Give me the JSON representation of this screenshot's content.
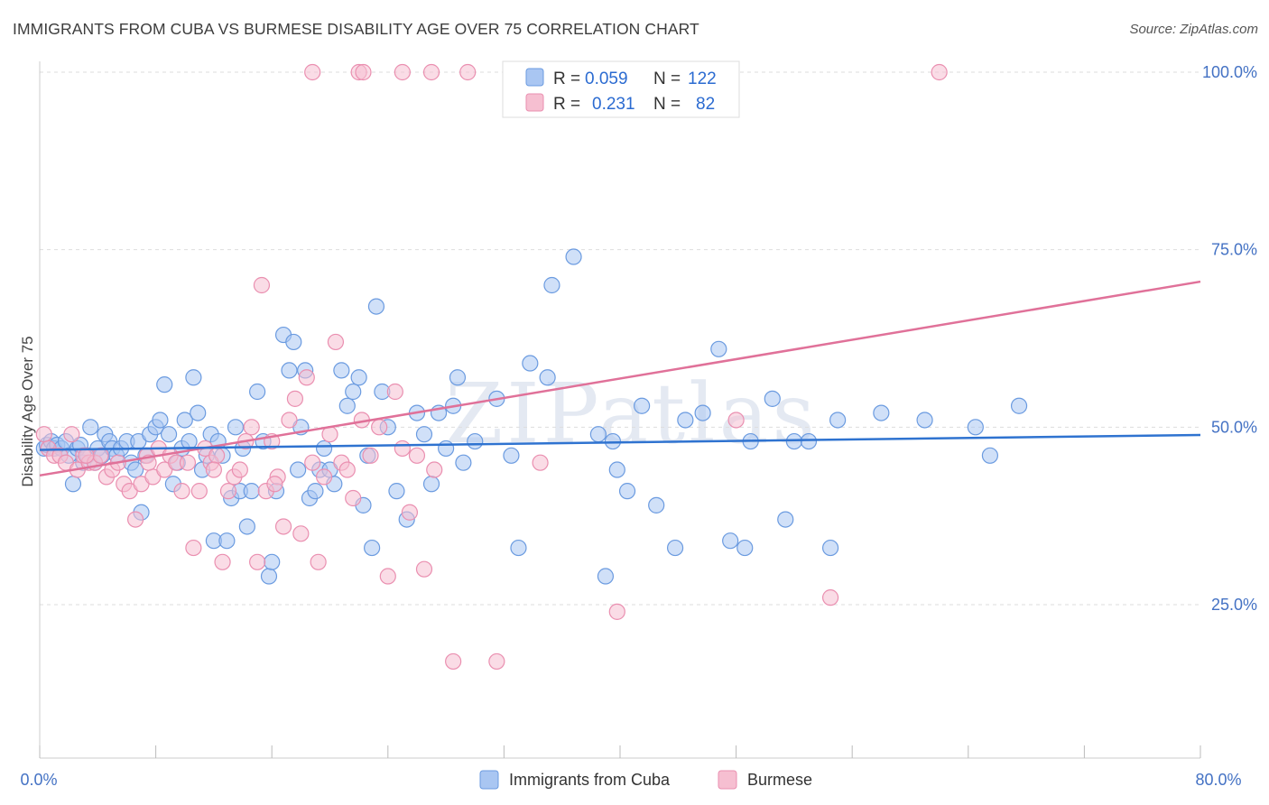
{
  "title": "IMMIGRANTS FROM CUBA VS BURMESE DISABILITY AGE OVER 75 CORRELATION CHART",
  "source": "Source: ZipAtlas.com",
  "watermark": "ZIPatlas",
  "colors": {
    "cuba_fill": "#a9c6f2",
    "cuba_stroke": "#6b9be0",
    "cuba_line": "#2f73d0",
    "burmese_fill": "#f6bfd1",
    "burmese_stroke": "#ea8fb0",
    "burmese_line": "#e07199",
    "grid": "#dddddd",
    "tick_label": "#4472c4"
  },
  "legend": {
    "r_label": "R =",
    "n_label": "N =",
    "rows": [
      {
        "series": "Immigrants from Cuba",
        "r": "0.059",
        "n": "122"
      },
      {
        "series": "Burmese",
        "r": "0.231",
        "n": "82"
      }
    ]
  },
  "chart_data": {
    "type": "scatter",
    "title": "IMMIGRANTS FROM CUBA VS BURMESE DISABILITY AGE OVER 75 CORRELATION CHART",
    "xlabel": "",
    "ylabel": "Disability Age Over 75",
    "xlim": [
      0,
      80
    ],
    "ylim": [
      0,
      105
    ],
    "x_tick_labels": [
      "0.0%",
      "80.0%"
    ],
    "y_ticks": [
      25,
      50,
      75,
      100
    ],
    "y_tick_labels": [
      "25.0%",
      "50.0%",
      "75.0%",
      "100.0%"
    ],
    "grid": true,
    "legend_position": "top-center",
    "series": [
      {
        "name": "Immigrants from Cuba",
        "trend": {
          "x": [
            0,
            80
          ],
          "y": [
            46.8,
            48.9
          ]
        },
        "points": [
          [
            0.3,
            47
          ],
          [
            0.5,
            47.5
          ],
          [
            0.8,
            48
          ],
          [
            1.0,
            47
          ],
          [
            1.2,
            47.5
          ],
          [
            1.5,
            47
          ],
          [
            1.8,
            48
          ],
          [
            2.0,
            46
          ],
          [
            2.3,
            42
          ],
          [
            2.6,
            47
          ],
          [
            2.8,
            47.5
          ],
          [
            3.0,
            45
          ],
          [
            3.3,
            46
          ],
          [
            3.5,
            50
          ],
          [
            3.8,
            45
          ],
          [
            4.0,
            47
          ],
          [
            4.3,
            46
          ],
          [
            4.5,
            49
          ],
          [
            4.8,
            48
          ],
          [
            5.0,
            47
          ],
          [
            5.3,
            46
          ],
          [
            5.6,
            47
          ],
          [
            6.0,
            48
          ],
          [
            6.3,
            45
          ],
          [
            6.6,
            44
          ],
          [
            6.8,
            48
          ],
          [
            7.0,
            38
          ],
          [
            7.3,
            46
          ],
          [
            7.6,
            49
          ],
          [
            8.0,
            50
          ],
          [
            8.3,
            51
          ],
          [
            8.6,
            56
          ],
          [
            8.9,
            49
          ],
          [
            9.2,
            42
          ],
          [
            9.5,
            45
          ],
          [
            9.8,
            47
          ],
          [
            10.0,
            51
          ],
          [
            10.3,
            48
          ],
          [
            10.6,
            57
          ],
          [
            10.9,
            52
          ],
          [
            11.2,
            44
          ],
          [
            11.5,
            46
          ],
          [
            11.8,
            49
          ],
          [
            12.0,
            34
          ],
          [
            12.3,
            48
          ],
          [
            12.6,
            46
          ],
          [
            12.9,
            34
          ],
          [
            13.2,
            40
          ],
          [
            13.5,
            50
          ],
          [
            13.8,
            41
          ],
          [
            14.0,
            47
          ],
          [
            14.3,
            36
          ],
          [
            14.6,
            41
          ],
          [
            15.0,
            55
          ],
          [
            15.4,
            48
          ],
          [
            15.8,
            29
          ],
          [
            16.0,
            31
          ],
          [
            16.3,
            41
          ],
          [
            16.8,
            63
          ],
          [
            17.2,
            58
          ],
          [
            17.5,
            62
          ],
          [
            17.8,
            44
          ],
          [
            18.0,
            50
          ],
          [
            18.3,
            58
          ],
          [
            18.6,
            40
          ],
          [
            19.0,
            41
          ],
          [
            19.3,
            44
          ],
          [
            19.6,
            47
          ],
          [
            20.0,
            44
          ],
          [
            20.3,
            42
          ],
          [
            20.8,
            58
          ],
          [
            21.2,
            53
          ],
          [
            21.6,
            55
          ],
          [
            22.0,
            57
          ],
          [
            22.3,
            39
          ],
          [
            22.6,
            46
          ],
          [
            22.9,
            33
          ],
          [
            23.2,
            67
          ],
          [
            23.6,
            55
          ],
          [
            24.0,
            50
          ],
          [
            24.6,
            41
          ],
          [
            25.3,
            37
          ],
          [
            26.0,
            52
          ],
          [
            26.5,
            49
          ],
          [
            27.0,
            42
          ],
          [
            27.5,
            52
          ],
          [
            28.0,
            47
          ],
          [
            28.5,
            53
          ],
          [
            28.8,
            57
          ],
          [
            29.2,
            45
          ],
          [
            30.0,
            48
          ],
          [
            31.5,
            54
          ],
          [
            32.5,
            46
          ],
          [
            33.0,
            33
          ],
          [
            33.8,
            59
          ],
          [
            35.0,
            57
          ],
          [
            35.3,
            70
          ],
          [
            36.8,
            74
          ],
          [
            38.5,
            49
          ],
          [
            39.0,
            29
          ],
          [
            39.5,
            48
          ],
          [
            39.8,
            44
          ],
          [
            40.5,
            41
          ],
          [
            41.5,
            53
          ],
          [
            42.5,
            39
          ],
          [
            43.8,
            33
          ],
          [
            44.5,
            51
          ],
          [
            45.7,
            52
          ],
          [
            46.8,
            61
          ],
          [
            47.6,
            34
          ],
          [
            48.6,
            33
          ],
          [
            49.0,
            48
          ],
          [
            50.5,
            54
          ],
          [
            51.4,
            37
          ],
          [
            52.0,
            48
          ],
          [
            53.0,
            48
          ],
          [
            54.5,
            33
          ],
          [
            55.0,
            51
          ],
          [
            58.0,
            52
          ],
          [
            61.0,
            51
          ],
          [
            64.5,
            50
          ],
          [
            65.5,
            46
          ],
          [
            67.5,
            53
          ]
        ]
      },
      {
        "name": "Burmese",
        "trend": {
          "x": [
            0,
            80
          ],
          "y": [
            43.2,
            70.5
          ]
        },
        "points": [
          [
            0.3,
            49
          ],
          [
            0.6,
            47
          ],
          [
            1.0,
            46
          ],
          [
            1.4,
            46
          ],
          [
            1.8,
            45
          ],
          [
            2.2,
            49
          ],
          [
            2.6,
            44
          ],
          [
            3.0,
            46
          ],
          [
            3.4,
            45
          ],
          [
            3.8,
            45
          ],
          [
            4.2,
            46
          ],
          [
            4.6,
            43
          ],
          [
            5.0,
            44
          ],
          [
            5.4,
            45
          ],
          [
            5.8,
            42
          ],
          [
            6.2,
            41
          ],
          [
            6.6,
            37
          ],
          [
            7.0,
            42
          ],
          [
            7.4,
            46
          ],
          [
            7.8,
            43
          ],
          [
            8.2,
            47
          ],
          [
            8.6,
            44
          ],
          [
            9.0,
            46
          ],
          [
            9.4,
            45
          ],
          [
            9.8,
            41
          ],
          [
            10.2,
            45
          ],
          [
            10.6,
            33
          ],
          [
            11.0,
            41
          ],
          [
            11.4,
            47
          ],
          [
            11.8,
            45
          ],
          [
            12.2,
            46
          ],
          [
            12.6,
            31
          ],
          [
            13.0,
            41
          ],
          [
            13.4,
            43
          ],
          [
            13.8,
            44
          ],
          [
            14.2,
            48
          ],
          [
            14.6,
            50
          ],
          [
            15.0,
            31
          ],
          [
            15.3,
            70
          ],
          [
            15.6,
            41
          ],
          [
            16.0,
            48
          ],
          [
            16.4,
            43
          ],
          [
            16.8,
            36
          ],
          [
            17.2,
            51
          ],
          [
            17.6,
            54
          ],
          [
            18.0,
            35
          ],
          [
            18.4,
            57
          ],
          [
            18.8,
            45
          ],
          [
            19.2,
            31
          ],
          [
            19.6,
            43
          ],
          [
            20.0,
            49
          ],
          [
            20.4,
            62
          ],
          [
            20.8,
            45
          ],
          [
            21.2,
            44
          ],
          [
            21.6,
            40
          ],
          [
            22.2,
            51
          ],
          [
            22.8,
            46
          ],
          [
            23.4,
            50
          ],
          [
            24.0,
            29
          ],
          [
            24.5,
            55
          ],
          [
            25.0,
            47
          ],
          [
            25.5,
            38
          ],
          [
            26.0,
            46
          ],
          [
            26.5,
            30
          ],
          [
            27.2,
            44
          ],
          [
            28.5,
            17
          ],
          [
            31.5,
            17
          ],
          [
            34.5,
            45
          ],
          [
            39.8,
            24
          ],
          [
            48.0,
            51
          ],
          [
            54.5,
            26
          ],
          [
            18.8,
            100
          ],
          [
            22.0,
            100
          ],
          [
            22.3,
            100
          ],
          [
            25.0,
            100
          ],
          [
            27.0,
            100
          ],
          [
            29.5,
            100
          ],
          [
            62.0,
            100
          ],
          [
            3.2,
            46
          ],
          [
            7.5,
            45
          ],
          [
            12.0,
            44
          ],
          [
            16.2,
            42
          ]
        ]
      }
    ]
  },
  "bottom_legend": [
    "Immigrants from Cuba",
    "Burmese"
  ]
}
